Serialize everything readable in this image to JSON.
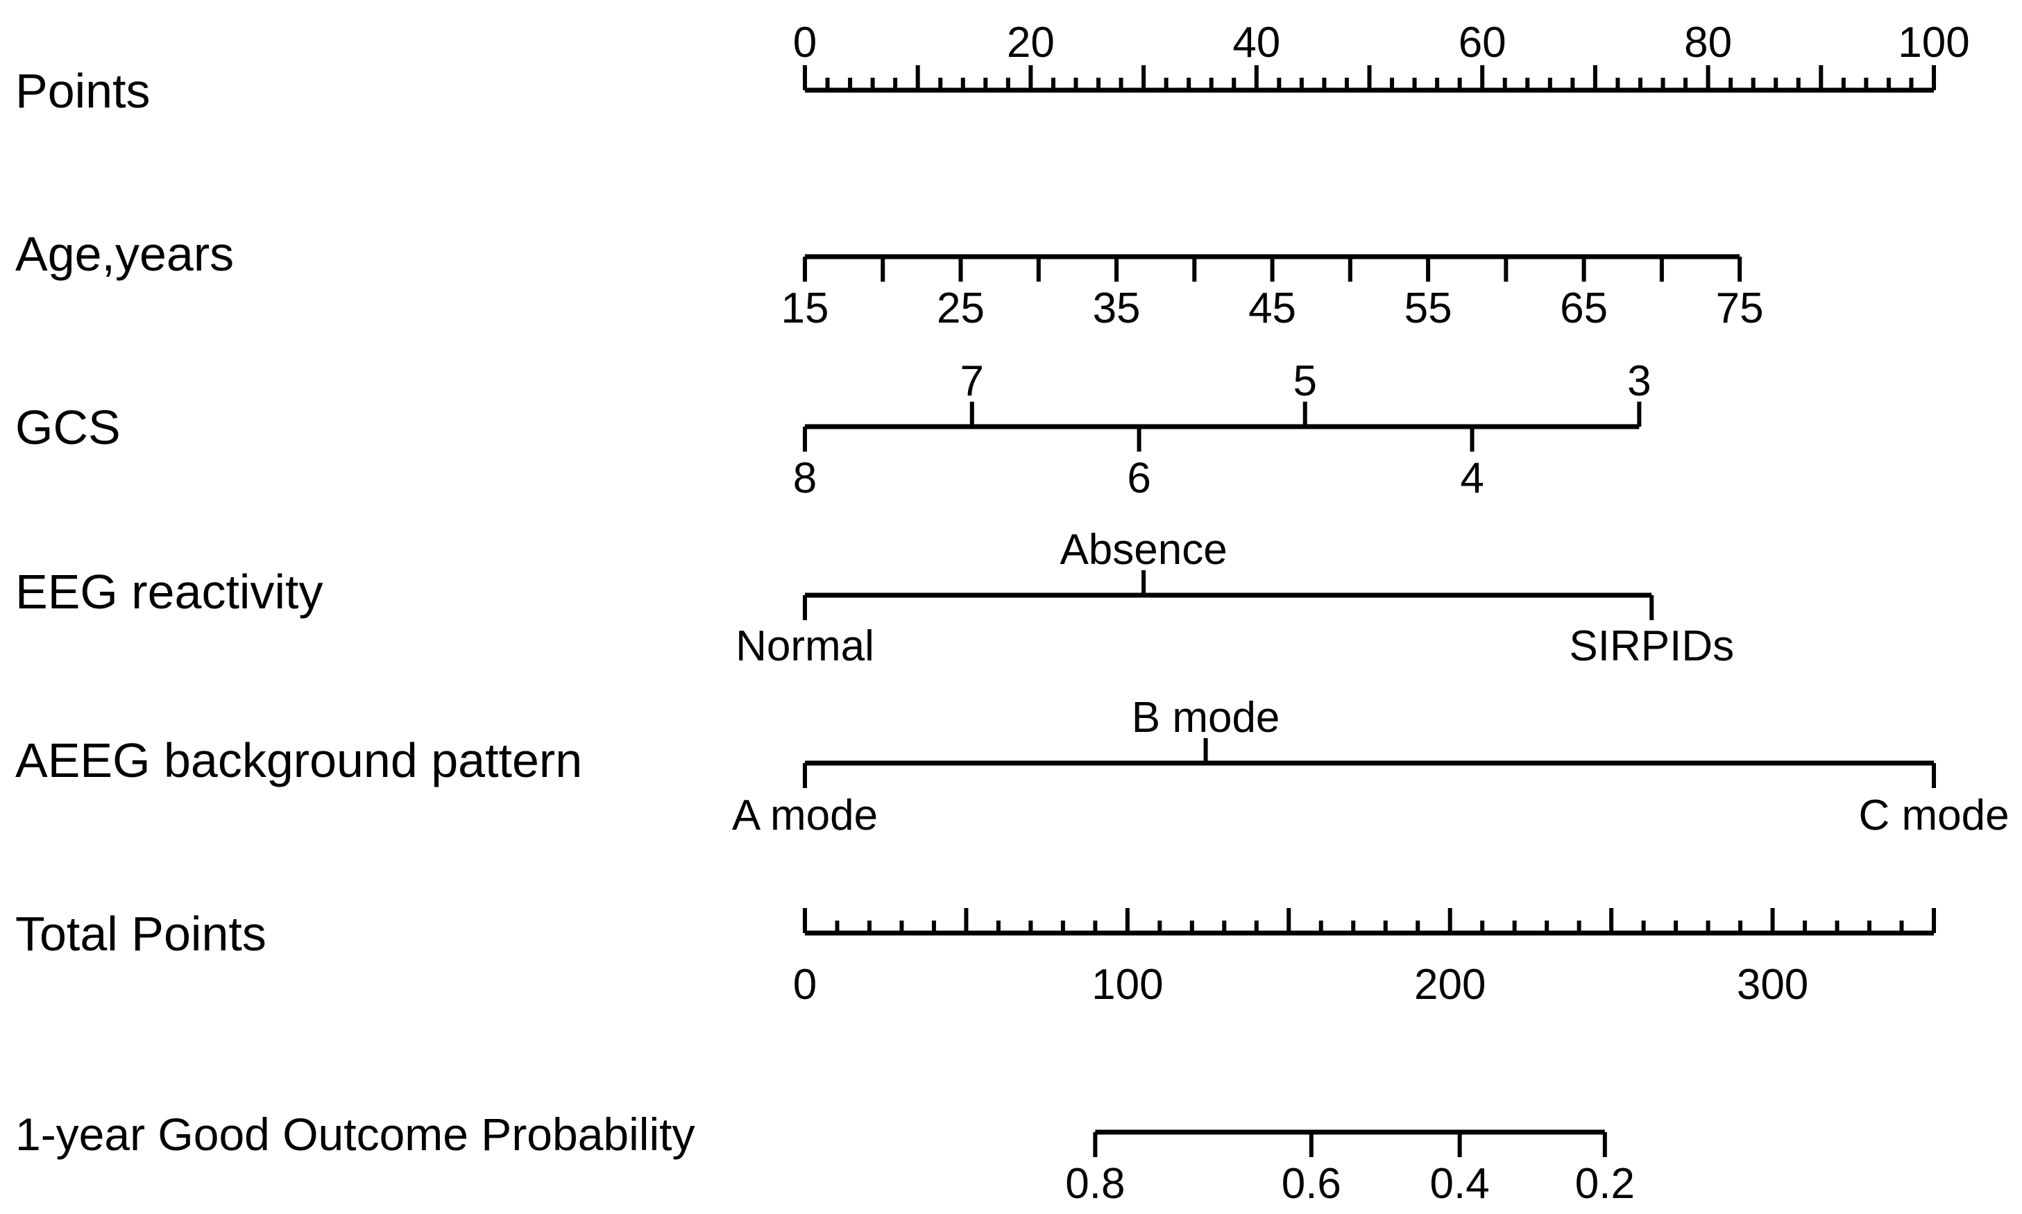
{
  "chart_data": {
    "type": "nomogram",
    "rows": [
      {
        "name": "Points",
        "ticks": [
          {
            "label": "0",
            "points": 0
          },
          {
            "label": "20",
            "points": 20
          },
          {
            "label": "40",
            "points": 40
          },
          {
            "label": "60",
            "points": 60
          },
          {
            "label": "80",
            "points": 80
          },
          {
            "label": "100",
            "points": 100
          }
        ]
      },
      {
        "name": "Age,years",
        "ticks": [
          {
            "label": "15",
            "points": 0
          },
          {
            "label": "25",
            "points": 13.8
          },
          {
            "label": "35",
            "points": 27.6
          },
          {
            "label": "45",
            "points": 41.4
          },
          {
            "label": "55",
            "points": 55.2
          },
          {
            "label": "65",
            "points": 69.0
          },
          {
            "label": "75",
            "points": 82.8
          }
        ]
      },
      {
        "name": "GCS",
        "ticks": [
          {
            "label": "8",
            "points": 0
          },
          {
            "label": "7",
            "points": 14.8
          },
          {
            "label": "6",
            "points": 29.6
          },
          {
            "label": "5",
            "points": 44.3
          },
          {
            "label": "4",
            "points": 59.1
          },
          {
            "label": "3",
            "points": 73.9
          }
        ]
      },
      {
        "name": "EEG reactivity",
        "ticks": [
          {
            "label": "Normal",
            "points": 0
          },
          {
            "label": "Absence",
            "points": 30.0
          },
          {
            "label": "SIRPIDs",
            "points": 75.0
          }
        ]
      },
      {
        "name": "AEEG background pattern",
        "ticks": [
          {
            "label": "A mode",
            "points": 0
          },
          {
            "label": "B mode",
            "points": 35.5
          },
          {
            "label": "C mode",
            "points": 100
          }
        ]
      },
      {
        "name": "Total Points",
        "ticks": [
          {
            "label": "0",
            "points": 0
          },
          {
            "label": "100",
            "points": 100
          },
          {
            "label": "200",
            "points": 200
          },
          {
            "label": "300",
            "points": 300
          }
        ],
        "range": [
          0,
          350
        ]
      },
      {
        "name": "1-year Good Outcome Probability",
        "ticks": [
          {
            "label": "0.8",
            "total_points": 90
          },
          {
            "label": "0.6",
            "total_points": 157
          },
          {
            "label": "0.4",
            "total_points": 203
          },
          {
            "label": "0.2",
            "total_points": 248
          }
        ]
      }
    ]
  }
}
